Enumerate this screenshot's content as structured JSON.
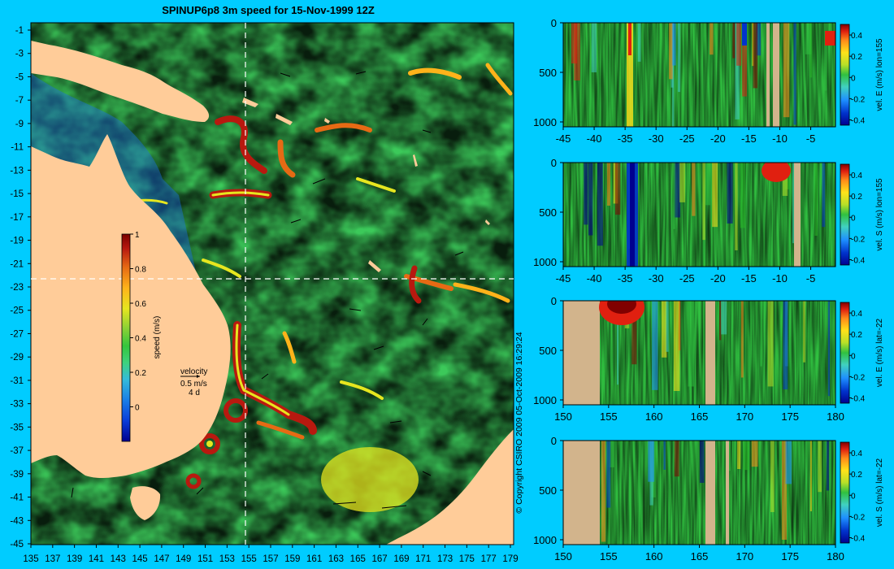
{
  "title": "SPINUP6p8 3m speed for 15-Nov-1999 12Z",
  "copyright": "© Copyright CSIRO 2009   05-Oct-2009 16:29:24",
  "colors": {
    "background": "#00ccff",
    "land": "#ffcc99",
    "section_land": "#d2b48c",
    "speed_map": [
      "#00008f",
      "#0a3dd9",
      "#1a7fe6",
      "#35bcd9",
      "#3fd27c",
      "#35c63d",
      "#8fd234",
      "#e6e61f",
      "#ffb31a",
      "#e66a14",
      "#b8190f",
      "#7a0000"
    ],
    "velocity_map": [
      "#00008f",
      "#0033cc",
      "#1e90ff",
      "#40d0c0",
      "#30c040",
      "#28b828",
      "#b8e028",
      "#ffe21a",
      "#ff8c1a",
      "#e02010",
      "#800000"
    ]
  },
  "map": {
    "speed_colorbar": {
      "label": "speed (m/s)",
      "ticks": [
        "1",
        "0.8",
        "0.6",
        "0.4",
        "0.2",
        "0"
      ],
      "range": [
        -0.2,
        1.0
      ]
    },
    "velocity_legend": {
      "title": "velocity",
      "speed": "0.5 m/s",
      "time": "4 d"
    },
    "x_ticks": [
      "135",
      "137",
      "139",
      "141",
      "143",
      "145",
      "147",
      "149",
      "151",
      "153",
      "155",
      "157",
      "159",
      "161",
      "163",
      "165",
      "167",
      "169",
      "171",
      "173",
      "175",
      "177",
      "179"
    ],
    "y_ticks": [
      "-1",
      "-3",
      "-5",
      "-7",
      "-9",
      "-11",
      "-13",
      "-15",
      "-17",
      "-19",
      "-21",
      "-23",
      "-25",
      "-27",
      "-29",
      "-31",
      "-33",
      "-35",
      "-37",
      "-39",
      "-41",
      "-43",
      "-45"
    ],
    "section_lines": {
      "lon": 155,
      "lat": -22
    }
  },
  "sections": [
    {
      "id": "lon155-east",
      "label": "vel. E (m/s) lon=155",
      "x_ticks": [
        "-45",
        "-40",
        "-35",
        "-30",
        "-25",
        "-20",
        "-15",
        "-10",
        "-5"
      ],
      "y_ticks": [
        "0",
        "500",
        "1000"
      ],
      "colorbar_ticks": [
        "0.4",
        "0.2",
        "0",
        "-0.2",
        "-0.4"
      ]
    },
    {
      "id": "lon155-south",
      "label": "vel. S (m/s) lon=155",
      "x_ticks": [
        "-45",
        "-40",
        "-35",
        "-30",
        "-25",
        "-20",
        "-15",
        "-10",
        "-5"
      ],
      "y_ticks": [
        "0",
        "500",
        "1000"
      ],
      "colorbar_ticks": [
        "0.4",
        "0.2",
        "0",
        "-0.2",
        "-0.4"
      ]
    },
    {
      "id": "lat22-east",
      "label": "vel. E (m/s) lat=-22",
      "x_ticks": [
        "150",
        "155",
        "160",
        "165",
        "170",
        "175",
        "180"
      ],
      "y_ticks": [
        "0",
        "500",
        "1000"
      ],
      "colorbar_ticks": [
        "0.4",
        "0.2",
        "0",
        "-0.2",
        "-0.4"
      ]
    },
    {
      "id": "lat22-south",
      "label": "vel. S (m/s) lat=-22",
      "x_ticks": [
        "150",
        "155",
        "160",
        "165",
        "170",
        "175",
        "180"
      ],
      "y_ticks": [
        "0",
        "500",
        "1000"
      ],
      "colorbar_ticks": [
        "0.4",
        "0.2",
        "0",
        "-0.2",
        "-0.4"
      ]
    }
  ]
}
